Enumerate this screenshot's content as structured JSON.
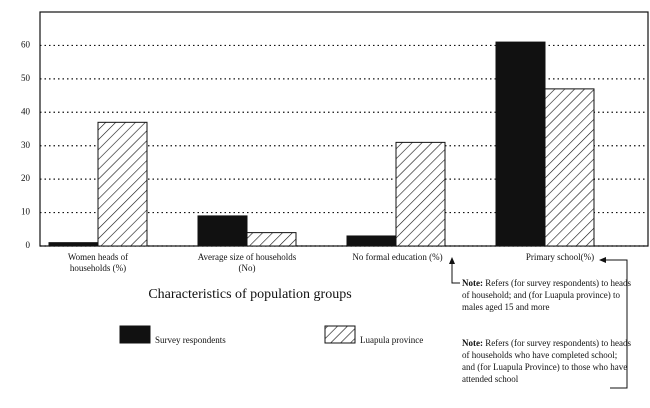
{
  "chart_data": {
    "type": "bar",
    "x_label": "Characteristics of population groups",
    "categories": [
      "Women heads of households (%)",
      "Average size of households (No)",
      "No formal education (%)",
      "Primary school(%)"
    ],
    "series": [
      {
        "name": "Survey respondents",
        "color": "#111111",
        "hatch": false,
        "values": [
          1,
          9,
          3,
          61
        ]
      },
      {
        "name": "Luapula province",
        "color": "#ffffff",
        "hatch": true,
        "values": [
          37,
          4,
          31,
          47
        ]
      }
    ],
    "ylim": [
      0,
      70
    ],
    "yticks": [
      0,
      10,
      20,
      30,
      40,
      50,
      60
    ],
    "grid": true,
    "notes": [
      {
        "label": "Note:",
        "text": "Refers (for survey respondents) to heads of household; and (for Luapula province) to males aged 15 and more"
      },
      {
        "label": "Note:",
        "text": "Refers (for survey respondents) to heads of households who have completed school; and (for Luapula Province) to those who have attended school"
      }
    ]
  }
}
